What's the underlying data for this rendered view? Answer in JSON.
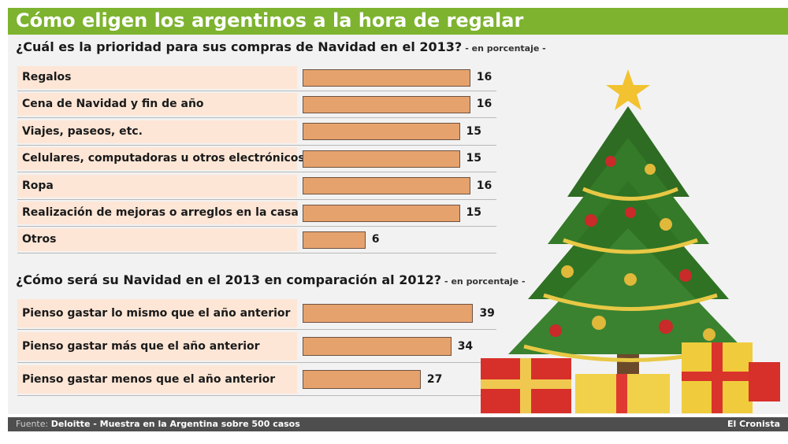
{
  "title": "Cómo eligen los argentinos a la hora de regalar",
  "footer": {
    "source_label": "Fuente:",
    "source_text": "Deloitte - Muestra en la Argentina sobre 500 casos",
    "brand": "El Cronista"
  },
  "colors": {
    "header_green": "#7db32f",
    "bar_fill": "#e6a26d",
    "row_fill": "#fde6d6",
    "footer_bg": "#4e4e4e"
  },
  "decoration": "christmas-tree-with-gifts",
  "chart_data": [
    {
      "type": "bar",
      "orientation": "horizontal",
      "title": "¿Cuál es la prioridad para sus compras de Navidad en el 2013?",
      "subtitle": "- en porcentaje -",
      "categories": [
        "Regalos",
        "Cena de Navidad y fin de año",
        "Viajes, paseos, etc.",
        "Celulares, computadoras u otros electrónicos",
        "Ropa",
        "Realización de mejoras o arreglos en la casa",
        "Otros"
      ],
      "values": [
        16,
        16,
        15,
        15,
        16,
        15,
        6
      ]
    },
    {
      "type": "bar",
      "orientation": "horizontal",
      "title": "¿Cómo será su Navidad en el 2013 en comparación al 2012?",
      "subtitle": "- en porcentaje -",
      "categories": [
        "Pienso gastar lo mismo que el año anterior",
        "Pienso gastar más que el año anterior",
        "Pienso gastar menos que el año anterior"
      ],
      "values": [
        39,
        34,
        27
      ]
    }
  ]
}
